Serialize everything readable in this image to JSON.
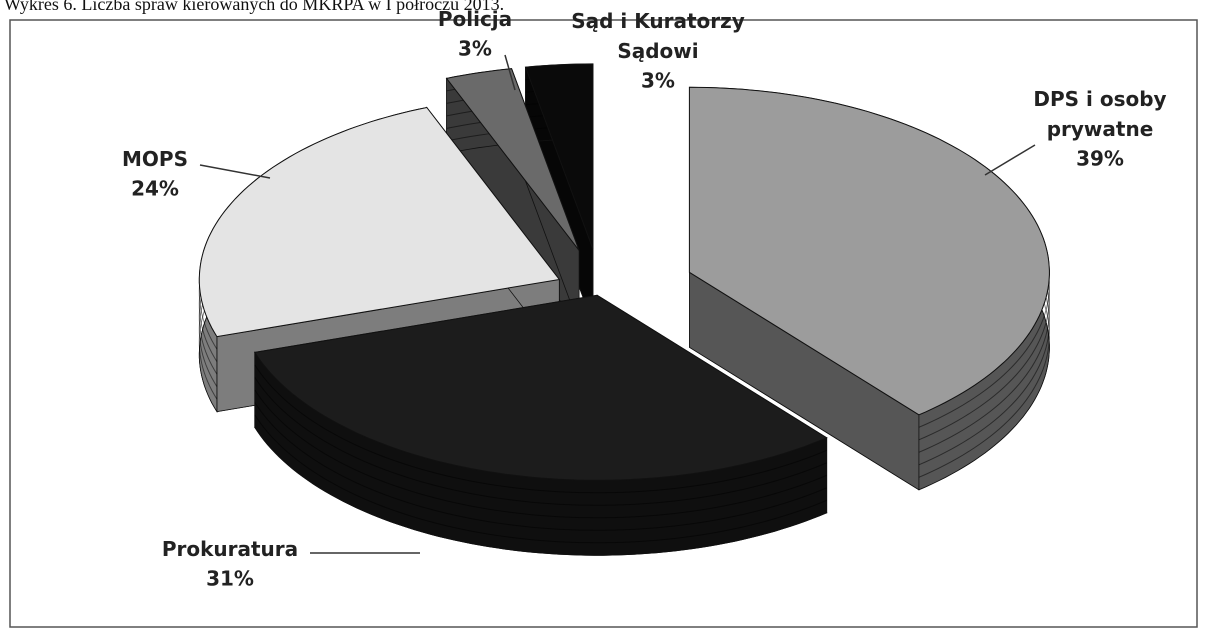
{
  "chart_data": {
    "type": "pie3d",
    "title": "Wykres 6. Liczba spraw kierowanych do MKRPA w I półroczu 2013.",
    "categories": [
      "DPS i osoby prywatne",
      "Prokuratura",
      "MOPS",
      "Policja",
      "Sąd i Kuratorzy Sądowi"
    ],
    "values": [
      39,
      31,
      24,
      3,
      3
    ],
    "value_labels": [
      "39%",
      "31%",
      "24%",
      "3%",
      "3%"
    ],
    "colors": [
      "#9c9c9c",
      "#1c1c1c",
      "#e4e4e4",
      "#6a6a6a",
      "#0a0a0a"
    ]
  }
}
